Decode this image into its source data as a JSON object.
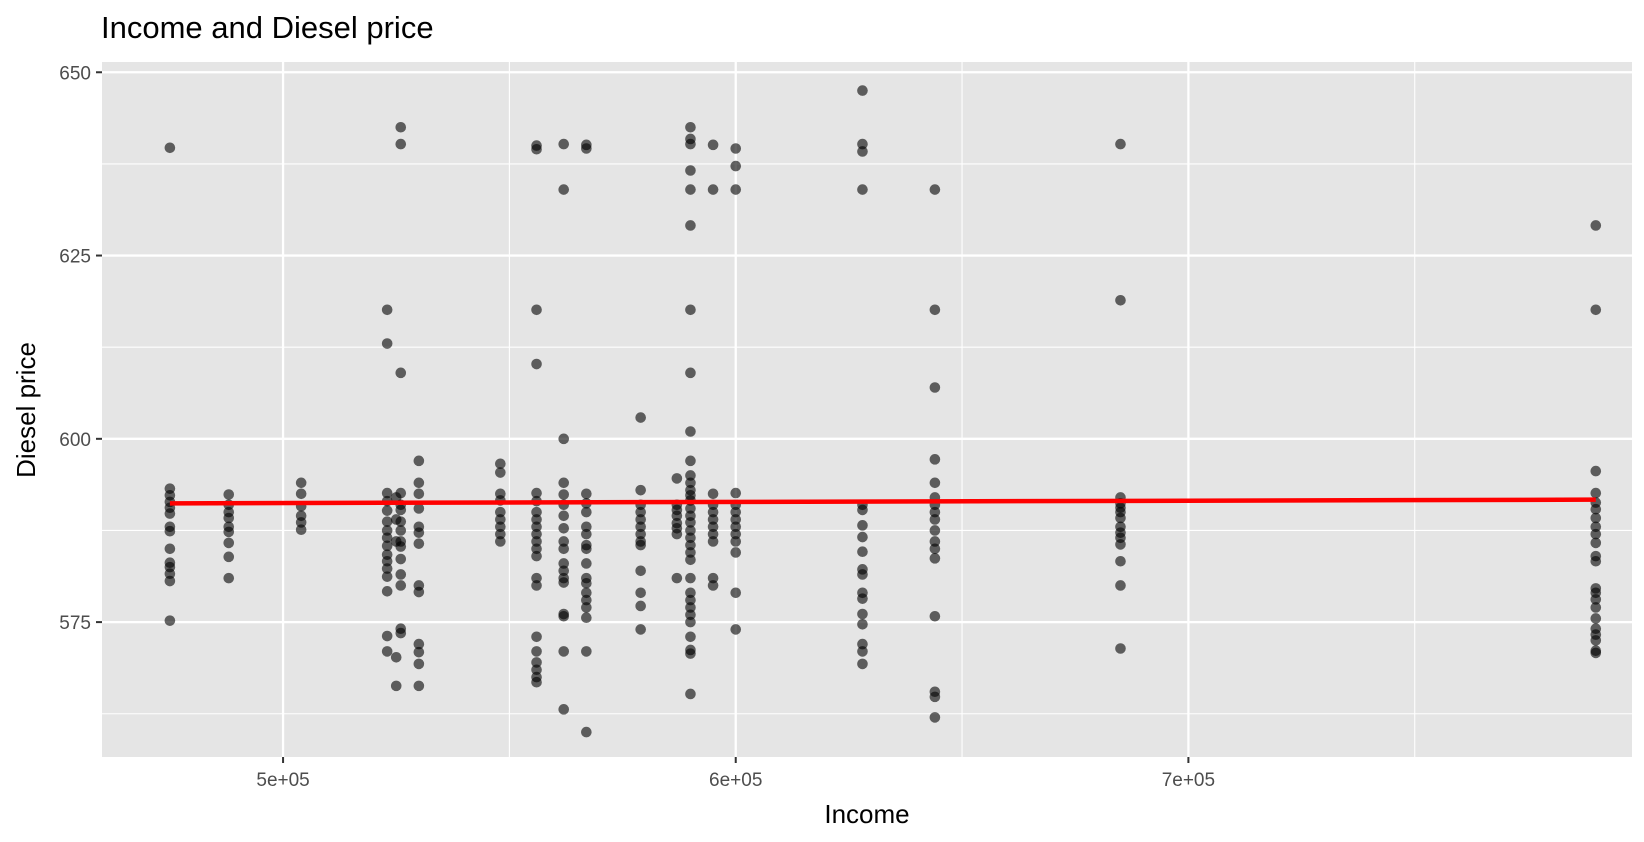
{
  "chart_data": {
    "type": "scatter",
    "title": "Income and Diesel price",
    "xlabel": "Income",
    "ylabel": "Diesel price",
    "xlim": [
      460000,
      798000
    ],
    "ylim": [
      556.6,
      651.4
    ],
    "x_ticks": [
      500000,
      600000,
      700000
    ],
    "x_tick_labels": [
      "5e+05",
      "6e+05",
      "7e+05"
    ],
    "y_ticks": [
      575,
      600,
      625,
      650
    ],
    "y_tick_labels": [
      "575",
      "600",
      "625",
      "650"
    ],
    "grid": true,
    "legend": "none",
    "colors": {
      "panel": "#e5e5e5",
      "grid": "#ffffff",
      "points": "#000000",
      "trend": "#ff0000",
      "tick_text": "#4d4d4d",
      "tick_mark": "#333333"
    },
    "trend_line": {
      "x": [
        475000,
        790000
      ],
      "y": [
        591.2,
        591.7
      ]
    },
    "points": [
      {
        "x": 475000,
        "y": 639.7
      },
      {
        "x": 475000,
        "y": 593.2
      },
      {
        "x": 475000,
        "y": 592.3
      },
      {
        "x": 475000,
        "y": 591.4
      },
      {
        "x": 475000,
        "y": 590.6
      },
      {
        "x": 475000,
        "y": 589.8
      },
      {
        "x": 475000,
        "y": 588.0
      },
      {
        "x": 475000,
        "y": 587.4
      },
      {
        "x": 475000,
        "y": 585.0
      },
      {
        "x": 475000,
        "y": 583.1
      },
      {
        "x": 475000,
        "y": 582.5
      },
      {
        "x": 475000,
        "y": 581.6
      },
      {
        "x": 475000,
        "y": 580.6
      },
      {
        "x": 475000,
        "y": 575.2
      },
      {
        "x": 488000,
        "y": 592.4
      },
      {
        "x": 488000,
        "y": 591.0
      },
      {
        "x": 488000,
        "y": 590.0
      },
      {
        "x": 488000,
        "y": 589.2
      },
      {
        "x": 488000,
        "y": 588.0
      },
      {
        "x": 488000,
        "y": 587.3
      },
      {
        "x": 488000,
        "y": 585.8
      },
      {
        "x": 488000,
        "y": 583.9
      },
      {
        "x": 488000,
        "y": 581.0
      },
      {
        "x": 504000,
        "y": 594.0
      },
      {
        "x": 504000,
        "y": 592.5
      },
      {
        "x": 504000,
        "y": 590.8
      },
      {
        "x": 504000,
        "y": 589.5
      },
      {
        "x": 504000,
        "y": 588.6
      },
      {
        "x": 504000,
        "y": 587.6
      },
      {
        "x": 523000,
        "y": 617.6
      },
      {
        "x": 523000,
        "y": 613.0
      },
      {
        "x": 523000,
        "y": 592.6
      },
      {
        "x": 523000,
        "y": 591.5
      },
      {
        "x": 523000,
        "y": 590.2
      },
      {
        "x": 523000,
        "y": 588.7
      },
      {
        "x": 523000,
        "y": 587.5
      },
      {
        "x": 523000,
        "y": 586.5
      },
      {
        "x": 523000,
        "y": 585.4
      },
      {
        "x": 523000,
        "y": 584.2
      },
      {
        "x": 523000,
        "y": 583.3
      },
      {
        "x": 523000,
        "y": 582.3
      },
      {
        "x": 523000,
        "y": 581.2
      },
      {
        "x": 523000,
        "y": 579.2
      },
      {
        "x": 523000,
        "y": 573.1
      },
      {
        "x": 523000,
        "y": 571.0
      },
      {
        "x": 525000,
        "y": 592.0
      },
      {
        "x": 525000,
        "y": 589.0
      },
      {
        "x": 525000,
        "y": 586.0
      },
      {
        "x": 525000,
        "y": 570.2
      },
      {
        "x": 525000,
        "y": 566.3
      },
      {
        "x": 526000,
        "y": 642.5
      },
      {
        "x": 526000,
        "y": 640.2
      },
      {
        "x": 526000,
        "y": 609.0
      },
      {
        "x": 526000,
        "y": 592.6
      },
      {
        "x": 526000,
        "y": 591.0
      },
      {
        "x": 526000,
        "y": 590.3
      },
      {
        "x": 526000,
        "y": 588.7
      },
      {
        "x": 526000,
        "y": 587.5
      },
      {
        "x": 526000,
        "y": 586.0
      },
      {
        "x": 526000,
        "y": 585.3
      },
      {
        "x": 526000,
        "y": 583.6
      },
      {
        "x": 526000,
        "y": 581.5
      },
      {
        "x": 526000,
        "y": 580.0
      },
      {
        "x": 526000,
        "y": 574.1
      },
      {
        "x": 526000,
        "y": 573.5
      },
      {
        "x": 530000,
        "y": 597.0
      },
      {
        "x": 530000,
        "y": 594.0
      },
      {
        "x": 530000,
        "y": 592.5
      },
      {
        "x": 530000,
        "y": 590.5
      },
      {
        "x": 530000,
        "y": 588.0
      },
      {
        "x": 530000,
        "y": 587.2
      },
      {
        "x": 530000,
        "y": 585.7
      },
      {
        "x": 530000,
        "y": 580.0
      },
      {
        "x": 530000,
        "y": 579.1
      },
      {
        "x": 530000,
        "y": 572.0
      },
      {
        "x": 530000,
        "y": 570.9
      },
      {
        "x": 530000,
        "y": 569.3
      },
      {
        "x": 530000,
        "y": 566.3
      },
      {
        "x": 548000,
        "y": 596.6
      },
      {
        "x": 548000,
        "y": 595.4
      },
      {
        "x": 548000,
        "y": 592.5
      },
      {
        "x": 548000,
        "y": 591.6
      },
      {
        "x": 548000,
        "y": 590.0
      },
      {
        "x": 548000,
        "y": 589.0
      },
      {
        "x": 548000,
        "y": 588.0
      },
      {
        "x": 548000,
        "y": 587.0
      },
      {
        "x": 548000,
        "y": 586.0
      },
      {
        "x": 556000,
        "y": 640.0
      },
      {
        "x": 556000,
        "y": 639.5
      },
      {
        "x": 556000,
        "y": 617.6
      },
      {
        "x": 556000,
        "y": 610.2
      },
      {
        "x": 556000,
        "y": 592.6
      },
      {
        "x": 556000,
        "y": 591.5
      },
      {
        "x": 556000,
        "y": 590.0
      },
      {
        "x": 556000,
        "y": 589.0
      },
      {
        "x": 556000,
        "y": 588.0
      },
      {
        "x": 556000,
        "y": 587.0
      },
      {
        "x": 556000,
        "y": 586.0
      },
      {
        "x": 556000,
        "y": 585.0
      },
      {
        "x": 556000,
        "y": 584.0
      },
      {
        "x": 556000,
        "y": 581.0
      },
      {
        "x": 556000,
        "y": 580.0
      },
      {
        "x": 556000,
        "y": 573.0
      },
      {
        "x": 556000,
        "y": 571.0
      },
      {
        "x": 556000,
        "y": 569.5
      },
      {
        "x": 556000,
        "y": 568.5
      },
      {
        "x": 556000,
        "y": 567.5
      },
      {
        "x": 556000,
        "y": 566.8
      },
      {
        "x": 562000,
        "y": 640.2
      },
      {
        "x": 562000,
        "y": 634.0
      },
      {
        "x": 562000,
        "y": 600.0
      },
      {
        "x": 562000,
        "y": 594.0
      },
      {
        "x": 562000,
        "y": 592.4
      },
      {
        "x": 562000,
        "y": 591.0
      },
      {
        "x": 562000,
        "y": 589.5
      },
      {
        "x": 562000,
        "y": 587.8
      },
      {
        "x": 562000,
        "y": 586.0
      },
      {
        "x": 562000,
        "y": 585.0
      },
      {
        "x": 562000,
        "y": 583.0
      },
      {
        "x": 562000,
        "y": 582.0
      },
      {
        "x": 562000,
        "y": 581.0
      },
      {
        "x": 562000,
        "y": 580.4
      },
      {
        "x": 562000,
        "y": 576.1
      },
      {
        "x": 562000,
        "y": 575.8
      },
      {
        "x": 562000,
        "y": 571.0
      },
      {
        "x": 562000,
        "y": 563.1
      },
      {
        "x": 567000,
        "y": 640.1
      },
      {
        "x": 567000,
        "y": 639.6
      },
      {
        "x": 567000,
        "y": 592.5
      },
      {
        "x": 567000,
        "y": 591.2
      },
      {
        "x": 567000,
        "y": 590.0
      },
      {
        "x": 567000,
        "y": 588.0
      },
      {
        "x": 567000,
        "y": 587.0
      },
      {
        "x": 567000,
        "y": 585.5
      },
      {
        "x": 567000,
        "y": 585.0
      },
      {
        "x": 567000,
        "y": 583.0
      },
      {
        "x": 567000,
        "y": 581.0
      },
      {
        "x": 567000,
        "y": 580.3
      },
      {
        "x": 567000,
        "y": 579.0
      },
      {
        "x": 567000,
        "y": 578.0
      },
      {
        "x": 567000,
        "y": 577.0
      },
      {
        "x": 567000,
        "y": 575.6
      },
      {
        "x": 567000,
        "y": 571.0
      },
      {
        "x": 567000,
        "y": 560.0
      },
      {
        "x": 579000,
        "y": 602.9
      },
      {
        "x": 579000,
        "y": 593.0
      },
      {
        "x": 579000,
        "y": 591.0
      },
      {
        "x": 579000,
        "y": 590.0
      },
      {
        "x": 579000,
        "y": 589.0
      },
      {
        "x": 579000,
        "y": 588.0
      },
      {
        "x": 579000,
        "y": 587.0
      },
      {
        "x": 579000,
        "y": 586.0
      },
      {
        "x": 579000,
        "y": 585.5
      },
      {
        "x": 579000,
        "y": 582.0
      },
      {
        "x": 579000,
        "y": 579.0
      },
      {
        "x": 579000,
        "y": 577.2
      },
      {
        "x": 579000,
        "y": 574.0
      },
      {
        "x": 587000,
        "y": 594.6
      },
      {
        "x": 587000,
        "y": 591.0
      },
      {
        "x": 587000,
        "y": 590.3
      },
      {
        "x": 587000,
        "y": 589.5
      },
      {
        "x": 587000,
        "y": 588.5
      },
      {
        "x": 587000,
        "y": 587.8
      },
      {
        "x": 587000,
        "y": 587.0
      },
      {
        "x": 587000,
        "y": 581.0
      },
      {
        "x": 590000,
        "y": 642.5
      },
      {
        "x": 590000,
        "y": 640.9
      },
      {
        "x": 590000,
        "y": 640.2
      },
      {
        "x": 590000,
        "y": 636.6
      },
      {
        "x": 590000,
        "y": 634.0
      },
      {
        "x": 590000,
        "y": 629.1
      },
      {
        "x": 590000,
        "y": 617.6
      },
      {
        "x": 590000,
        "y": 609.0
      },
      {
        "x": 590000,
        "y": 601.0
      },
      {
        "x": 590000,
        "y": 597.0
      },
      {
        "x": 590000,
        "y": 595.0
      },
      {
        "x": 590000,
        "y": 594.0
      },
      {
        "x": 590000,
        "y": 593.0
      },
      {
        "x": 590000,
        "y": 592.3
      },
      {
        "x": 590000,
        "y": 591.6
      },
      {
        "x": 590000,
        "y": 590.5
      },
      {
        "x": 590000,
        "y": 589.5
      },
      {
        "x": 590000,
        "y": 588.6
      },
      {
        "x": 590000,
        "y": 587.5
      },
      {
        "x": 590000,
        "y": 586.5
      },
      {
        "x": 590000,
        "y": 585.5
      },
      {
        "x": 590000,
        "y": 584.5
      },
      {
        "x": 590000,
        "y": 583.5
      },
      {
        "x": 590000,
        "y": 581.0
      },
      {
        "x": 590000,
        "y": 579.0
      },
      {
        "x": 590000,
        "y": 578.0
      },
      {
        "x": 590000,
        "y": 577.0
      },
      {
        "x": 590000,
        "y": 576.0
      },
      {
        "x": 590000,
        "y": 575.0
      },
      {
        "x": 590000,
        "y": 573.0
      },
      {
        "x": 590000,
        "y": 571.2
      },
      {
        "x": 590000,
        "y": 570.7
      },
      {
        "x": 590000,
        "y": 565.2
      },
      {
        "x": 595000,
        "y": 640.1
      },
      {
        "x": 595000,
        "y": 634.0
      },
      {
        "x": 595000,
        "y": 592.5
      },
      {
        "x": 595000,
        "y": 591.0
      },
      {
        "x": 595000,
        "y": 590.0
      },
      {
        "x": 595000,
        "y": 589.0
      },
      {
        "x": 595000,
        "y": 588.0
      },
      {
        "x": 595000,
        "y": 587.0
      },
      {
        "x": 595000,
        "y": 586.0
      },
      {
        "x": 595000,
        "y": 581.0
      },
      {
        "x": 595000,
        "y": 580.0
      },
      {
        "x": 600000,
        "y": 639.6
      },
      {
        "x": 600000,
        "y": 637.2
      },
      {
        "x": 600000,
        "y": 634.0
      },
      {
        "x": 600000,
        "y": 592.6
      },
      {
        "x": 600000,
        "y": 591.0
      },
      {
        "x": 600000,
        "y": 590.0
      },
      {
        "x": 600000,
        "y": 589.0
      },
      {
        "x": 600000,
        "y": 588.0
      },
      {
        "x": 600000,
        "y": 587.0
      },
      {
        "x": 600000,
        "y": 586.0
      },
      {
        "x": 600000,
        "y": 584.5
      },
      {
        "x": 600000,
        "y": 579.0
      },
      {
        "x": 600000,
        "y": 574.0
      },
      {
        "x": 628000,
        "y": 647.5
      },
      {
        "x": 628000,
        "y": 640.2
      },
      {
        "x": 628000,
        "y": 639.2
      },
      {
        "x": 628000,
        "y": 634.0
      },
      {
        "x": 628000,
        "y": 591.0
      },
      {
        "x": 628000,
        "y": 590.3
      },
      {
        "x": 628000,
        "y": 588.2
      },
      {
        "x": 628000,
        "y": 586.6
      },
      {
        "x": 628000,
        "y": 584.6
      },
      {
        "x": 628000,
        "y": 582.2
      },
      {
        "x": 628000,
        "y": 581.5
      },
      {
        "x": 628000,
        "y": 579.0
      },
      {
        "x": 628000,
        "y": 578.2
      },
      {
        "x": 628000,
        "y": 576.1
      },
      {
        "x": 628000,
        "y": 574.7
      },
      {
        "x": 628000,
        "y": 572.0
      },
      {
        "x": 628000,
        "y": 571.0
      },
      {
        "x": 628000,
        "y": 569.3
      },
      {
        "x": 644000,
        "y": 634.0
      },
      {
        "x": 644000,
        "y": 617.6
      },
      {
        "x": 644000,
        "y": 607.0
      },
      {
        "x": 644000,
        "y": 597.2
      },
      {
        "x": 644000,
        "y": 594.0
      },
      {
        "x": 644000,
        "y": 592.0
      },
      {
        "x": 644000,
        "y": 591.0
      },
      {
        "x": 644000,
        "y": 590.0
      },
      {
        "x": 644000,
        "y": 589.0
      },
      {
        "x": 644000,
        "y": 587.5
      },
      {
        "x": 644000,
        "y": 586.0
      },
      {
        "x": 644000,
        "y": 585.0
      },
      {
        "x": 644000,
        "y": 583.7
      },
      {
        "x": 644000,
        "y": 575.8
      },
      {
        "x": 644000,
        "y": 565.5
      },
      {
        "x": 644000,
        "y": 564.8
      },
      {
        "x": 644000,
        "y": 562.0
      },
      {
        "x": 685000,
        "y": 640.2
      },
      {
        "x": 685000,
        "y": 618.9
      },
      {
        "x": 685000,
        "y": 592.0
      },
      {
        "x": 685000,
        "y": 591.2
      },
      {
        "x": 685000,
        "y": 590.6
      },
      {
        "x": 685000,
        "y": 590.0
      },
      {
        "x": 685000,
        "y": 589.2
      },
      {
        "x": 685000,
        "y": 588.0
      },
      {
        "x": 685000,
        "y": 587.2
      },
      {
        "x": 685000,
        "y": 586.5
      },
      {
        "x": 685000,
        "y": 585.6
      },
      {
        "x": 685000,
        "y": 583.3
      },
      {
        "x": 685000,
        "y": 580.0
      },
      {
        "x": 685000,
        "y": 571.4
      },
      {
        "x": 790000,
        "y": 629.1
      },
      {
        "x": 790000,
        "y": 617.6
      },
      {
        "x": 790000,
        "y": 595.6
      },
      {
        "x": 790000,
        "y": 592.6
      },
      {
        "x": 790000,
        "y": 591.3
      },
      {
        "x": 790000,
        "y": 590.4
      },
      {
        "x": 790000,
        "y": 589.2
      },
      {
        "x": 790000,
        "y": 588.0
      },
      {
        "x": 790000,
        "y": 587.0
      },
      {
        "x": 790000,
        "y": 585.8
      },
      {
        "x": 790000,
        "y": 584.0
      },
      {
        "x": 790000,
        "y": 583.3
      },
      {
        "x": 790000,
        "y": 579.6
      },
      {
        "x": 790000,
        "y": 579.0
      },
      {
        "x": 790000,
        "y": 578.1
      },
      {
        "x": 790000,
        "y": 577.0
      },
      {
        "x": 790000,
        "y": 575.5
      },
      {
        "x": 790000,
        "y": 574.1
      },
      {
        "x": 790000,
        "y": 573.3
      },
      {
        "x": 790000,
        "y": 572.5
      },
      {
        "x": 790000,
        "y": 571.1
      },
      {
        "x": 790000,
        "y": 570.8
      }
    ]
  }
}
